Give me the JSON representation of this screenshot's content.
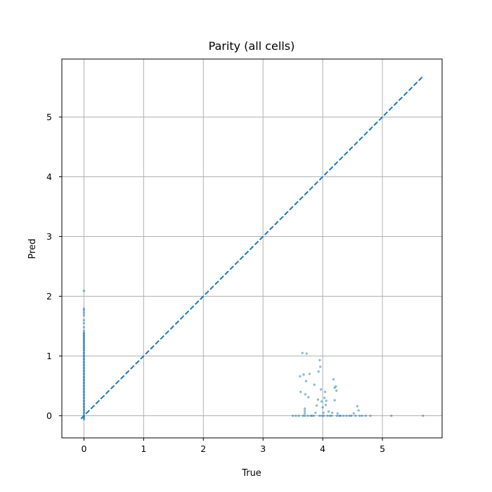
{
  "chart_data": {
    "type": "scatter",
    "title": "Parity (all cells)",
    "xlabel": "True",
    "ylabel": "Pred",
    "xlim": [
      -0.37,
      6.0
    ],
    "ylim": [
      -0.37,
      5.97
    ],
    "xticks": [
      0,
      1,
      2,
      3,
      4,
      5
    ],
    "yticks": [
      0,
      1,
      2,
      3,
      4,
      5
    ],
    "xtick_labels": [
      "0",
      "1",
      "2",
      "3",
      "4",
      "5"
    ],
    "ytick_labels": [
      "0",
      "1",
      "2",
      "3",
      "4",
      "5"
    ],
    "grid": true,
    "point_color": "#1f77b4",
    "line_color": "#1f77b4",
    "parity_line": {
      "style": "dashed",
      "x": [
        -0.05,
        5.68
      ],
      "y": [
        -0.05,
        5.68
      ]
    },
    "series": [
      {
        "points": [
          [
            0,
            2.09
          ],
          [
            0,
            1.79
          ],
          [
            0,
            1.76
          ],
          [
            0,
            1.72
          ],
          [
            0,
            1.68
          ],
          [
            0,
            1.6
          ],
          [
            0,
            1.55
          ],
          [
            0,
            1.48
          ],
          [
            0,
            1.42
          ],
          [
            0,
            1.38
          ],
          [
            0,
            1.34
          ],
          [
            0,
            1.3
          ],
          [
            0,
            1.26
          ],
          [
            0,
            1.22
          ],
          [
            0,
            1.18
          ],
          [
            0,
            1.14
          ],
          [
            0,
            1.1
          ],
          [
            0,
            1.05
          ],
          [
            0,
            1.0
          ],
          [
            0,
            0.95
          ],
          [
            0,
            0.9
          ],
          [
            0,
            0.85
          ],
          [
            0,
            0.8
          ],
          [
            0,
            0.75
          ],
          [
            0,
            0.7
          ],
          [
            0,
            0.65
          ],
          [
            0,
            0.6
          ],
          [
            0,
            0.55
          ],
          [
            0,
            0.5
          ],
          [
            0,
            0.45
          ],
          [
            0,
            0.4
          ],
          [
            0,
            0.35
          ],
          [
            0,
            0.3
          ],
          [
            0,
            0.25
          ],
          [
            0,
            0.2
          ],
          [
            0,
            0.15
          ],
          [
            0,
            0.1
          ],
          [
            0,
            0.05
          ],
          [
            0,
            0.0
          ],
          [
            0,
            -0.03
          ],
          [
            0,
            -0.06
          ],
          [
            3.5,
            0.0
          ],
          [
            3.55,
            0.0
          ],
          [
            3.6,
            0.0
          ],
          [
            3.62,
            0.66
          ],
          [
            3.63,
            0.4
          ],
          [
            3.66,
            1.05
          ],
          [
            3.67,
            0.0
          ],
          [
            3.68,
            0.69
          ],
          [
            3.7,
            0.12
          ],
          [
            3.7,
            0.08
          ],
          [
            3.7,
            0.04
          ],
          [
            3.7,
            0.0
          ],
          [
            3.71,
            0.36
          ],
          [
            3.72,
            0.58
          ],
          [
            3.73,
            1.04
          ],
          [
            3.75,
            0.0
          ],
          [
            3.76,
            0.31
          ],
          [
            3.78,
            0.7
          ],
          [
            3.8,
            0.0
          ],
          [
            3.82,
            0.0
          ],
          [
            3.85,
            0.0
          ],
          [
            3.86,
            0.52
          ],
          [
            3.88,
            0.05
          ],
          [
            3.9,
            0.17
          ],
          [
            3.92,
            0.27
          ],
          [
            3.93,
            0.74
          ],
          [
            3.95,
            0.0
          ],
          [
            3.95,
            0.93
          ],
          [
            3.96,
            0.82
          ],
          [
            3.97,
            0.44
          ],
          [
            3.98,
            0.24
          ],
          [
            3.99,
            0.0
          ],
          [
            4.0,
            0.14
          ],
          [
            4.01,
            0.05
          ],
          [
            4.02,
            0.0
          ],
          [
            4.03,
            0.3
          ],
          [
            4.04,
            0.4
          ],
          [
            4.05,
            0.18
          ],
          [
            4.06,
            0.25
          ],
          [
            4.08,
            0.0
          ],
          [
            4.1,
            0.07
          ],
          [
            4.12,
            0.0
          ],
          [
            4.15,
            0.0
          ],
          [
            4.16,
            0.05
          ],
          [
            4.18,
            0.61
          ],
          [
            4.2,
            0.47
          ],
          [
            4.2,
            0.26
          ],
          [
            4.22,
            0.49
          ],
          [
            4.23,
            0.42
          ],
          [
            4.24,
            0.0
          ],
          [
            4.25,
            0.04
          ],
          [
            4.28,
            0.0
          ],
          [
            4.3,
            0.0
          ],
          [
            4.35,
            0.0
          ],
          [
            4.4,
            0.0
          ],
          [
            4.45,
            0.0
          ],
          [
            4.48,
            0.0
          ],
          [
            4.52,
            0.04
          ],
          [
            4.55,
            0.0
          ],
          [
            4.58,
            0.16
          ],
          [
            4.6,
            0.09
          ],
          [
            4.62,
            0.0
          ],
          [
            4.66,
            0.0
          ],
          [
            4.72,
            0.0
          ],
          [
            4.8,
            0.0
          ],
          [
            5.15,
            0.0
          ],
          [
            5.68,
            0.0
          ]
        ]
      }
    ]
  }
}
